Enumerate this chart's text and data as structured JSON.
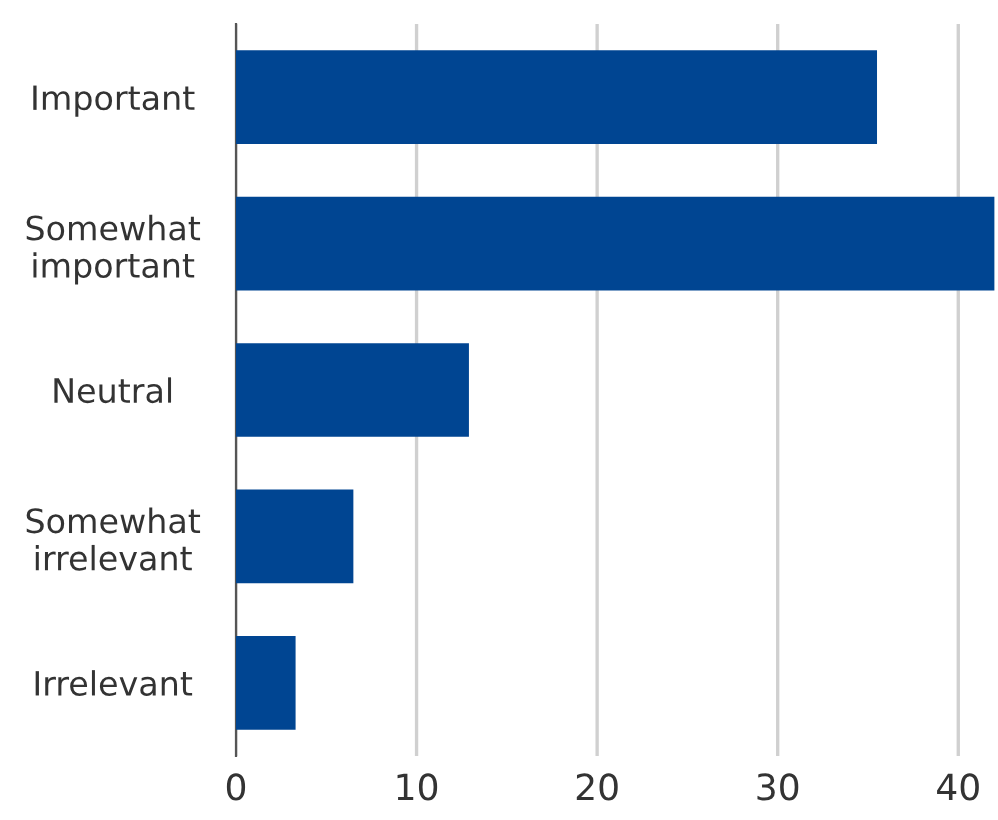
{
  "chart_data": {
    "type": "bar",
    "orientation": "horizontal",
    "categories": [
      "Important",
      "Somewhat\nimportant",
      "Neutral",
      "Somewhat\nirrelevant",
      "Irrelevant"
    ],
    "values": [
      35.5,
      42,
      12.9,
      6.5,
      3.3
    ],
    "color": "#004592",
    "xlim": [
      0,
      42.2
    ],
    "xticks": [
      0,
      10,
      20,
      30,
      40
    ],
    "grid": "x"
  }
}
